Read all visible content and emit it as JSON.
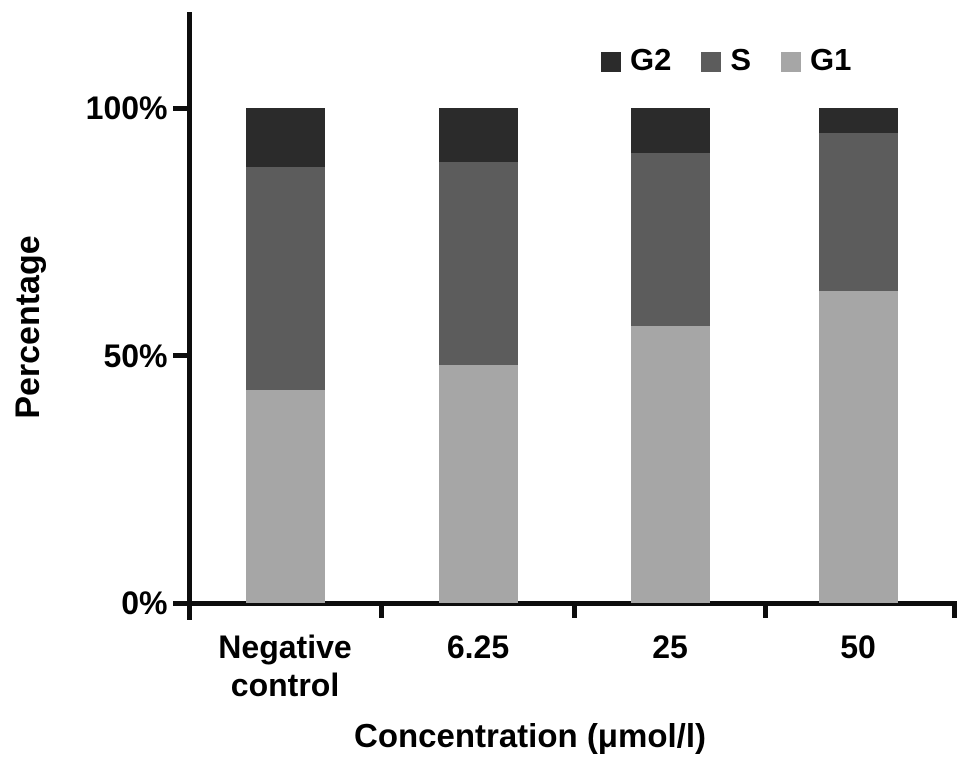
{
  "chart_data": {
    "type": "bar",
    "stacked": true,
    "orientation": "vertical",
    "title": "",
    "xlabel": "Concentration (μmol/l)",
    "ylabel": "Percentage",
    "categories": [
      "Negative control",
      "6.25",
      "25",
      "50"
    ],
    "series": [
      {
        "name": "G1",
        "color": "#a6a6a6",
        "values": [
          43,
          48,
          56,
          63
        ]
      },
      {
        "name": "S",
        "color": "#5c5c5c",
        "values": [
          45,
          41,
          35,
          32
        ]
      },
      {
        "name": "G2",
        "color": "#2b2b2b",
        "values": [
          12,
          11,
          9,
          5
        ]
      }
    ],
    "stack_order_bottom_to_top": [
      "G1",
      "S",
      "G2"
    ],
    "legend": {
      "position": "top-right",
      "order": [
        "G2",
        "S",
        "G1"
      ]
    },
    "yticks": [
      {
        "label": "0%",
        "value": 0
      },
      {
        "label": "50%",
        "value": 50
      },
      {
        "label": "100%",
        "value": 100
      }
    ],
    "ylim": [
      0,
      100
    ],
    "grid": false,
    "axis_color": "#0d0d0d",
    "background_color": "#ffffff"
  }
}
